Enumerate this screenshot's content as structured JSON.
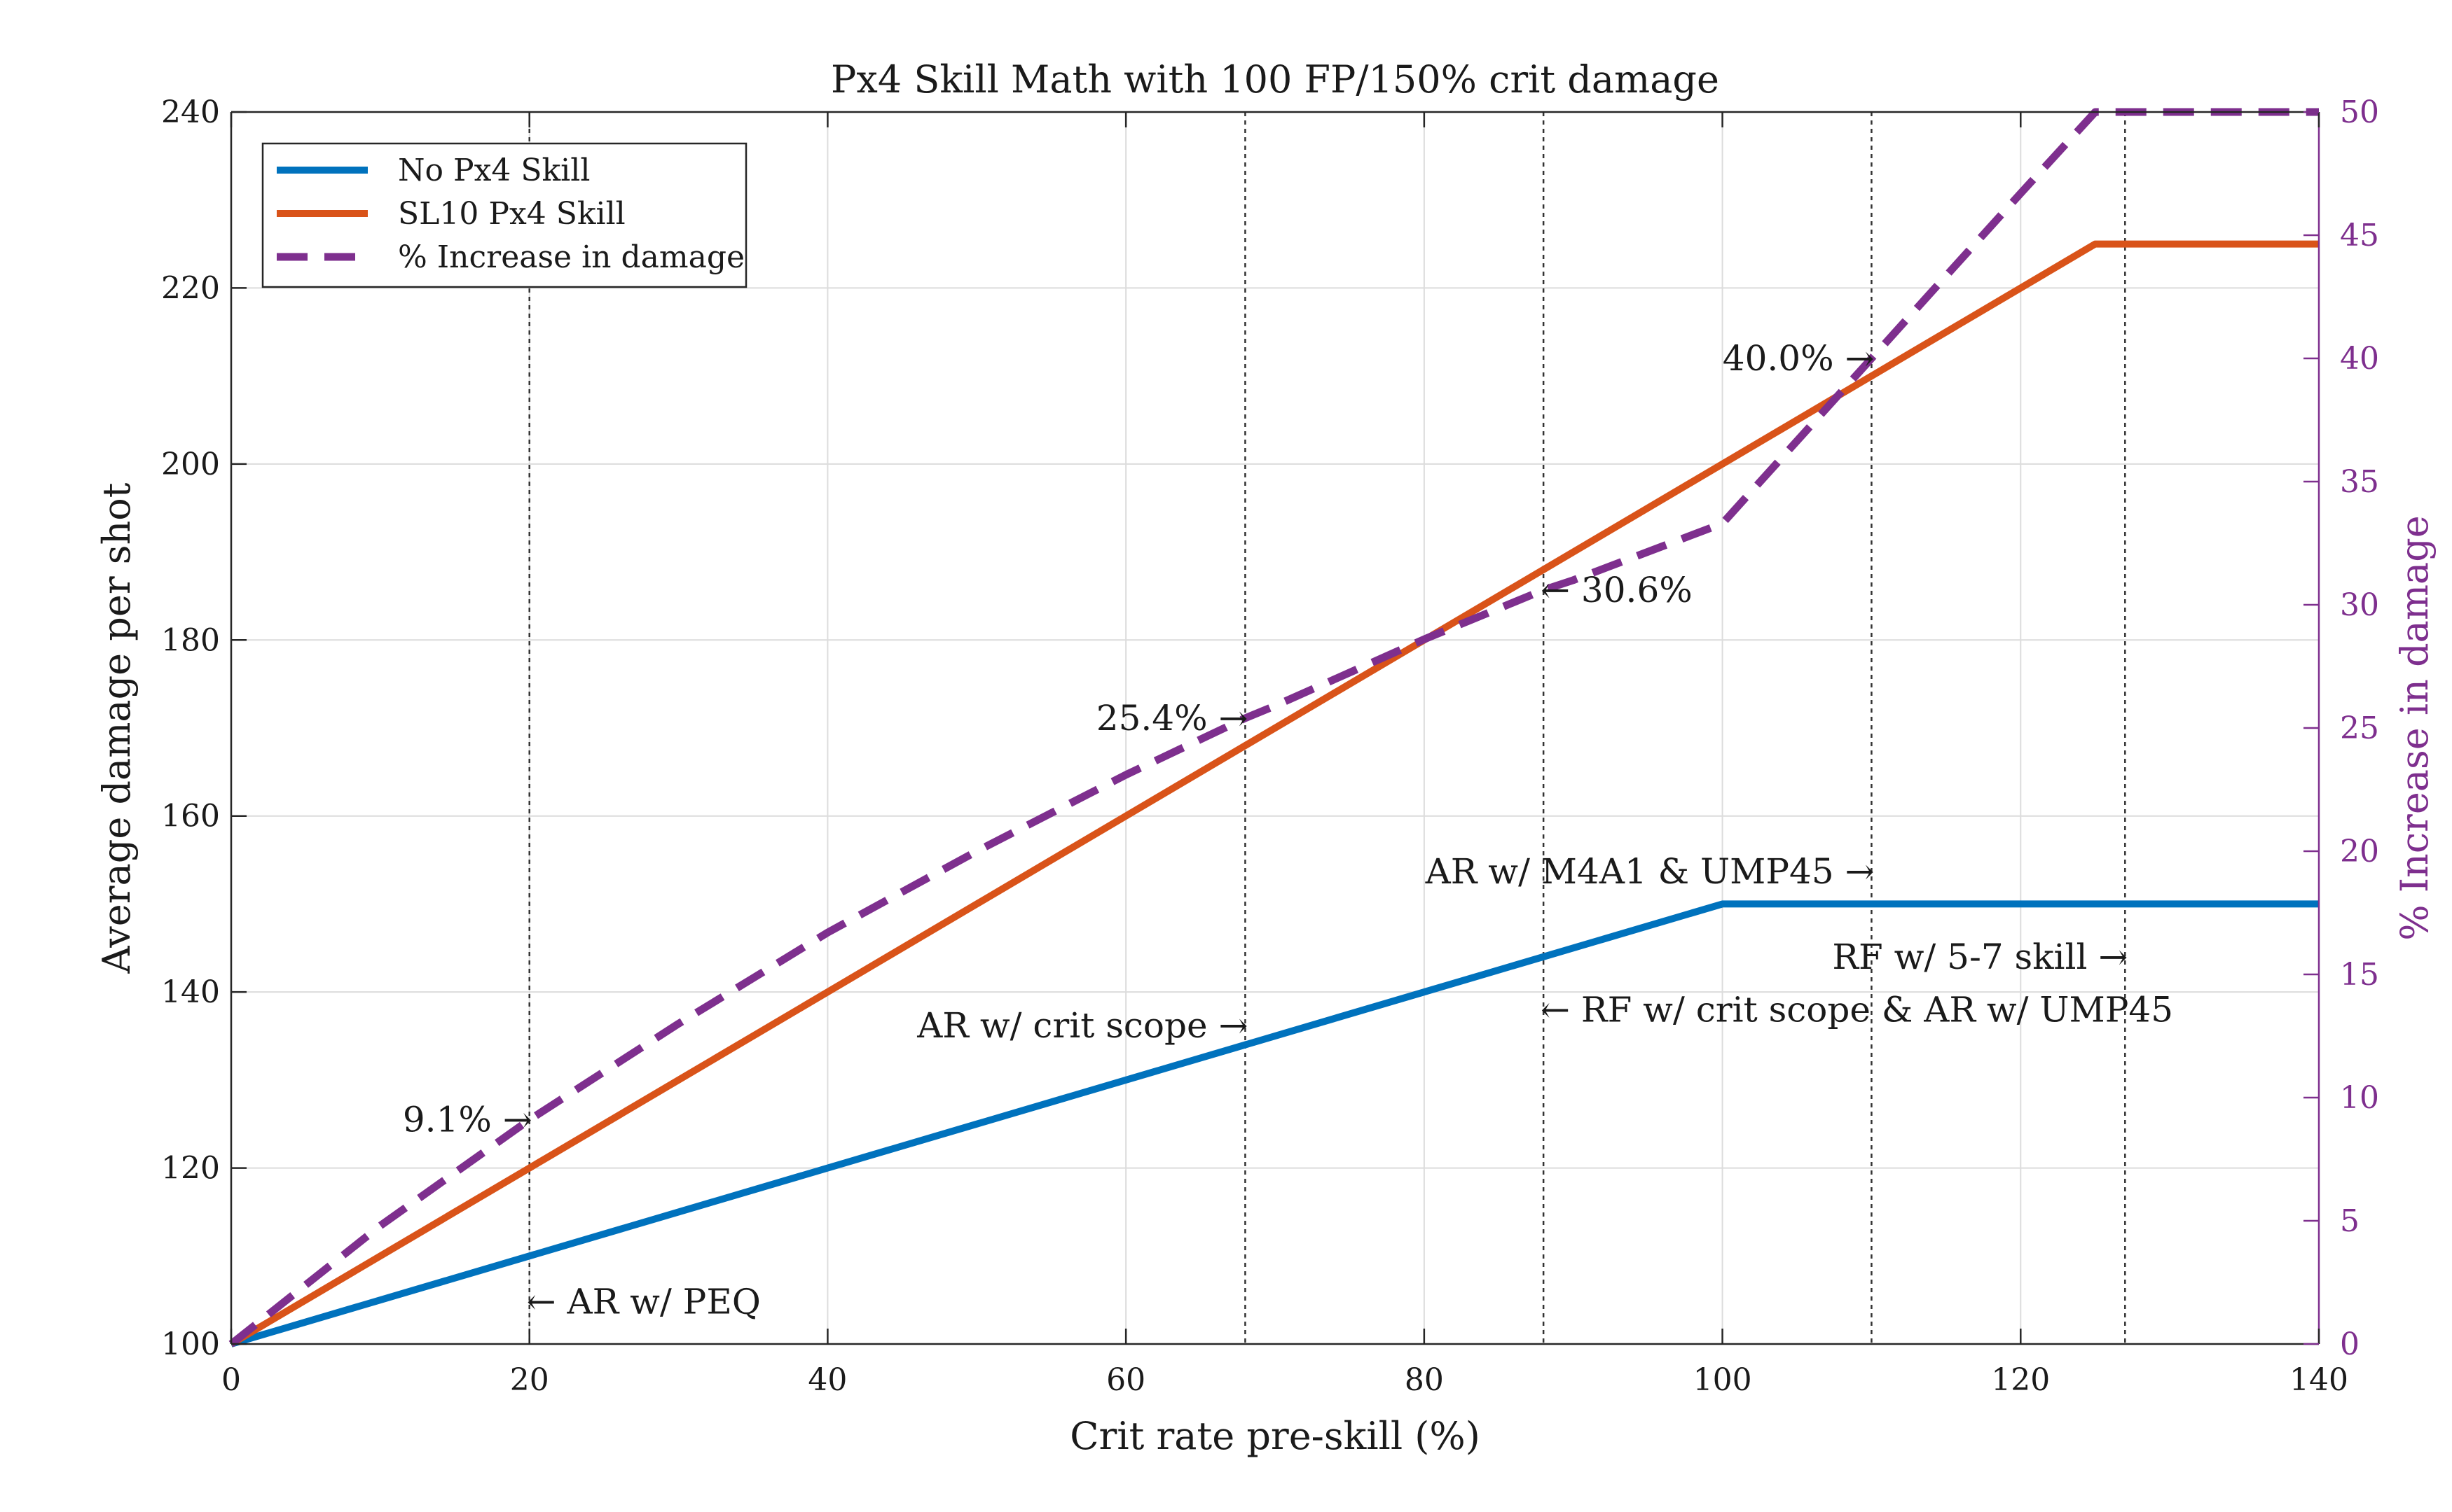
{
  "chart_data": {
    "type": "line",
    "title": "Px4 Skill Math with 100 FP/150% crit damage",
    "xlabel": "Crit rate pre-skill (%)",
    "ylabel": "Average damage per shot",
    "ylabel_right": "% Increase in damage",
    "xlim": [
      0,
      140
    ],
    "ylim": [
      100,
      240
    ],
    "ylim_right": [
      0,
      50
    ],
    "xticks": [
      "0",
      "20",
      "40",
      "60",
      "80",
      "100",
      "120",
      "140"
    ],
    "yticks": [
      "100",
      "120",
      "140",
      "160",
      "180",
      "200",
      "220",
      "240"
    ],
    "yticks_right": [
      "0",
      "5",
      "10",
      "15",
      "20",
      "25",
      "30",
      "35",
      "40",
      "45",
      "50"
    ],
    "grid": true,
    "legend_position": "top-left",
    "series": [
      {
        "name": "No Px4 Skill",
        "axis": "left",
        "style": "solid",
        "color": "#0072bd",
        "x": [
          0,
          100,
          140
        ],
        "y": [
          100,
          150,
          150
        ]
      },
      {
        "name": "SL10 Px4 Skill",
        "axis": "left",
        "style": "solid",
        "color": "#d95319",
        "x": [
          0,
          125,
          140
        ],
        "y": [
          100,
          225,
          225
        ]
      },
      {
        "name": "% Increase in damage",
        "axis": "right",
        "style": "dashed",
        "color": "#7e2f8e",
        "x": [
          0,
          10,
          20,
          30,
          40,
          50,
          60,
          68,
          70,
          80,
          88,
          90,
          100,
          110,
          120,
          125,
          130,
          140
        ],
        "y": [
          0,
          4.8,
          9.1,
          13.0,
          16.7,
          20.0,
          23.1,
          25.4,
          25.9,
          28.6,
          30.6,
          31.0,
          33.3,
          40.0,
          46.7,
          50.0,
          50.0,
          50.0
        ]
      }
    ],
    "vlines": [
      20,
      68,
      88,
      110,
      127
    ],
    "annotations": [
      {
        "text": "9.1% →",
        "x": 20,
        "y": 9.1,
        "axis": "right",
        "align": "end"
      },
      {
        "text": "25.4% →",
        "x": 68,
        "y": 25.4,
        "axis": "right",
        "align": "end"
      },
      {
        "text": "← 30.6%",
        "x": 88,
        "y": 30.6,
        "axis": "right",
        "align": "start"
      },
      {
        "text": "40.0% →",
        "x": 110,
        "y": 40.0,
        "axis": "right",
        "align": "end"
      },
      {
        "text": "← AR w/ PEQ",
        "x": 20,
        "y": 104.8,
        "axis": "left",
        "align": "start"
      },
      {
        "text": "AR w/ crit scope →",
        "x": 68,
        "y": 136.2,
        "axis": "left",
        "align": "end"
      },
      {
        "text": "← RF w/ crit scope & AR w/ UMP45",
        "x": 88,
        "y": 138.0,
        "axis": "left",
        "align": "start"
      },
      {
        "text": "AR w/ M4A1 & UMP45 →",
        "x": 110,
        "y": 153.7,
        "axis": "left",
        "align": "end"
      },
      {
        "text": "RF w/ 5-7 skill →",
        "x": 127,
        "y": 144.0,
        "axis": "left",
        "align": "end"
      }
    ]
  }
}
